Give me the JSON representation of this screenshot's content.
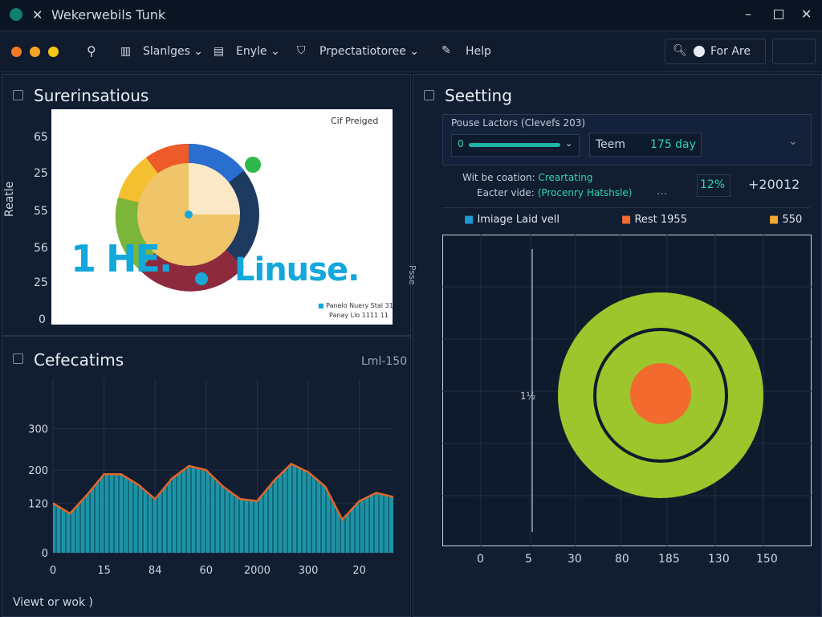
{
  "window": {
    "title": "Wekerwebils Tunk"
  },
  "toolbar": {
    "menus": [
      "Slanlges",
      "Enyle",
      "Prpectatiotoree",
      "Help"
    ],
    "search": "For Are"
  },
  "overview": {
    "title": "Surerinsatious",
    "y_label": "Reatle",
    "y_labels": [
      "65",
      "25",
      "55",
      "56",
      "25",
      "0"
    ],
    "image": {
      "corner": "Cif Preiged",
      "left_text": "1 HE.",
      "right_text": "Linuse.",
      "legend": [
        "Panelo Nuery Stal 31",
        "Panay Llo 1111 11"
      ]
    }
  },
  "trend": {
    "title": "Cefecatims",
    "corner": "Lml-150"
  },
  "chart_data": {
    "type": "area",
    "categories": [
      "0",
      null,
      null,
      "15",
      null,
      null,
      "84",
      null,
      null,
      "60",
      null,
      null,
      "2000",
      null,
      null,
      "300",
      null,
      null,
      "20",
      null,
      null
    ],
    "series": [
      {
        "color": "#1fa2b4",
        "line_color": "#e0662a",
        "values": [
          120,
          95,
          140,
          190,
          190,
          165,
          130,
          180,
          210,
          200,
          160,
          130,
          125,
          175,
          215,
          195,
          160,
          80,
          125,
          145,
          135
        ]
      }
    ],
    "ylim": [
      0,
      420
    ],
    "yticks": [
      0,
      120,
      200,
      300
    ],
    "grid": true
  },
  "settings": {
    "title": "Seetting",
    "group_label": "Pouse Lactors (Clevefs 203)",
    "slider_value": "0",
    "field_label": "Teem",
    "field_value": "175 day",
    "info": [
      {
        "label": "Wit be coation:",
        "value": "Creartating"
      },
      {
        "label": "Eacter vide:",
        "value": "(Procenry Hatshsle)"
      }
    ],
    "ellipsis": "...",
    "percent": "12%",
    "total": "+20012",
    "legend": [
      {
        "name": "Imiage Laid vell",
        "color": "#1e9bd7"
      },
      {
        "name": "Rest 1955",
        "color": "#f26a2e"
      },
      {
        "name": "550",
        "color": "#f2a72e"
      }
    ],
    "y_label": "Psse",
    "marker_label": "1½",
    "x_labels": [
      "0",
      "5",
      "30",
      "80",
      "185",
      "130",
      "150"
    ]
  },
  "status": "Viewt or wok )"
}
